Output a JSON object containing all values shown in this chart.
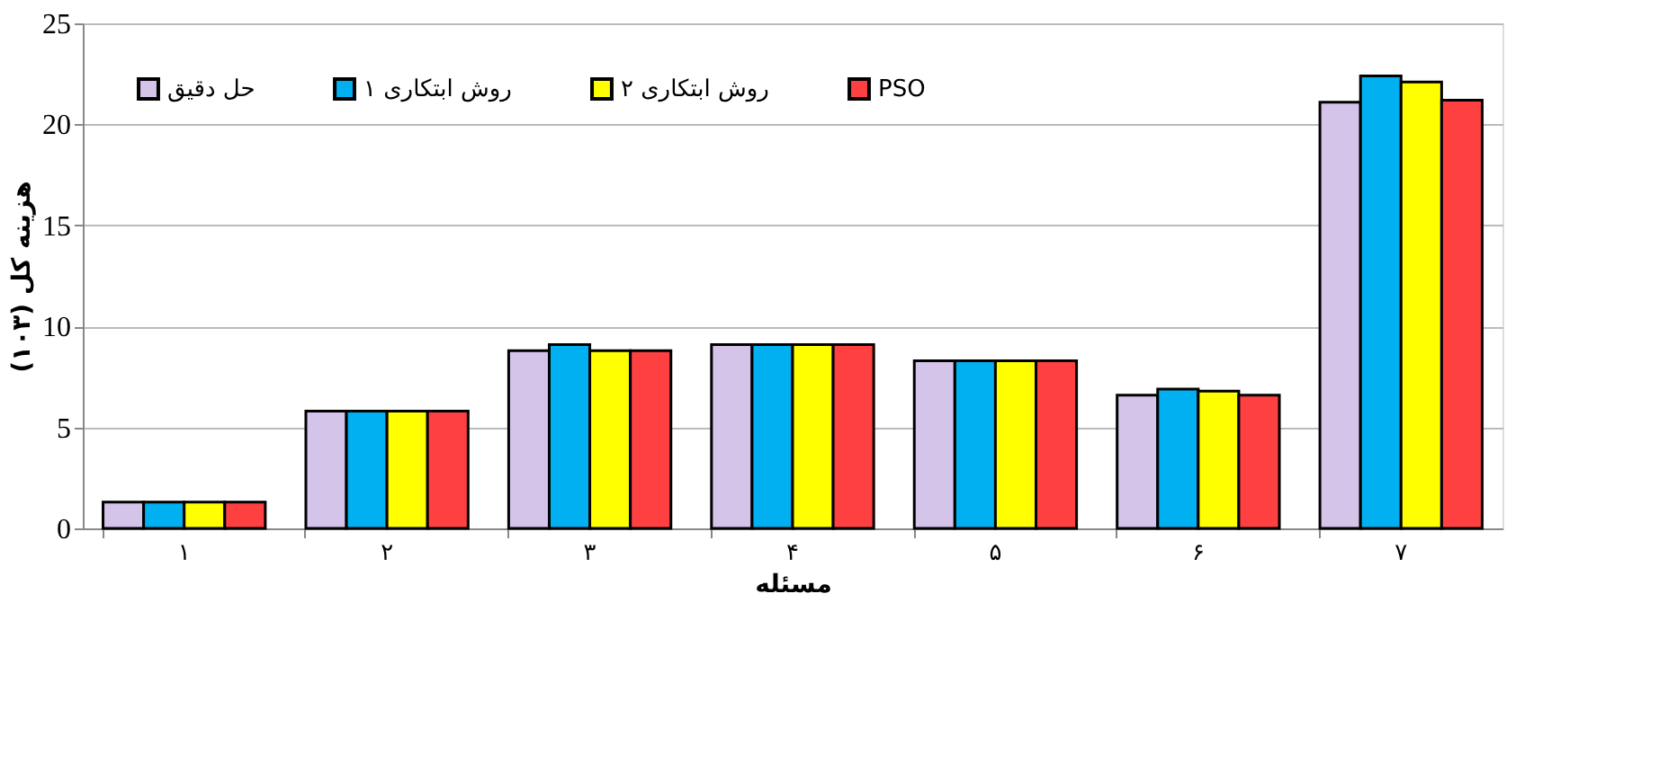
{
  "chart_data": {
    "type": "bar",
    "xlabel": "مسئله",
    "ylabel": "هزینه کل (۱۰۳)",
    "categories": [
      "۱",
      "۲",
      "۳",
      "۴",
      "۵",
      "۶",
      "۷"
    ],
    "series": [
      {
        "name": "حل دقیق",
        "color": "#d4c4ea",
        "values": [
          1.3,
          5.8,
          8.8,
          9.1,
          8.3,
          6.6,
          21.1
        ]
      },
      {
        "name": "روش ابتکاری ۱",
        "color": "#00b0f0",
        "values": [
          1.3,
          5.8,
          9.1,
          9.1,
          8.3,
          6.9,
          22.4
        ]
      },
      {
        "name": "روش ابتکاری ۲",
        "color": "#ffff00",
        "values": [
          1.3,
          5.8,
          8.8,
          9.1,
          8.3,
          6.8,
          22.1
        ]
      },
      {
        "name": "PSO",
        "color": "#ff4040",
        "values": [
          1.3,
          5.8,
          8.8,
          9.1,
          8.3,
          6.6,
          21.2
        ]
      }
    ],
    "ylim": [
      0,
      25
    ],
    "yticks": [
      0,
      5,
      10,
      15,
      20,
      25
    ],
    "grid": "y",
    "legend": "top left"
  }
}
